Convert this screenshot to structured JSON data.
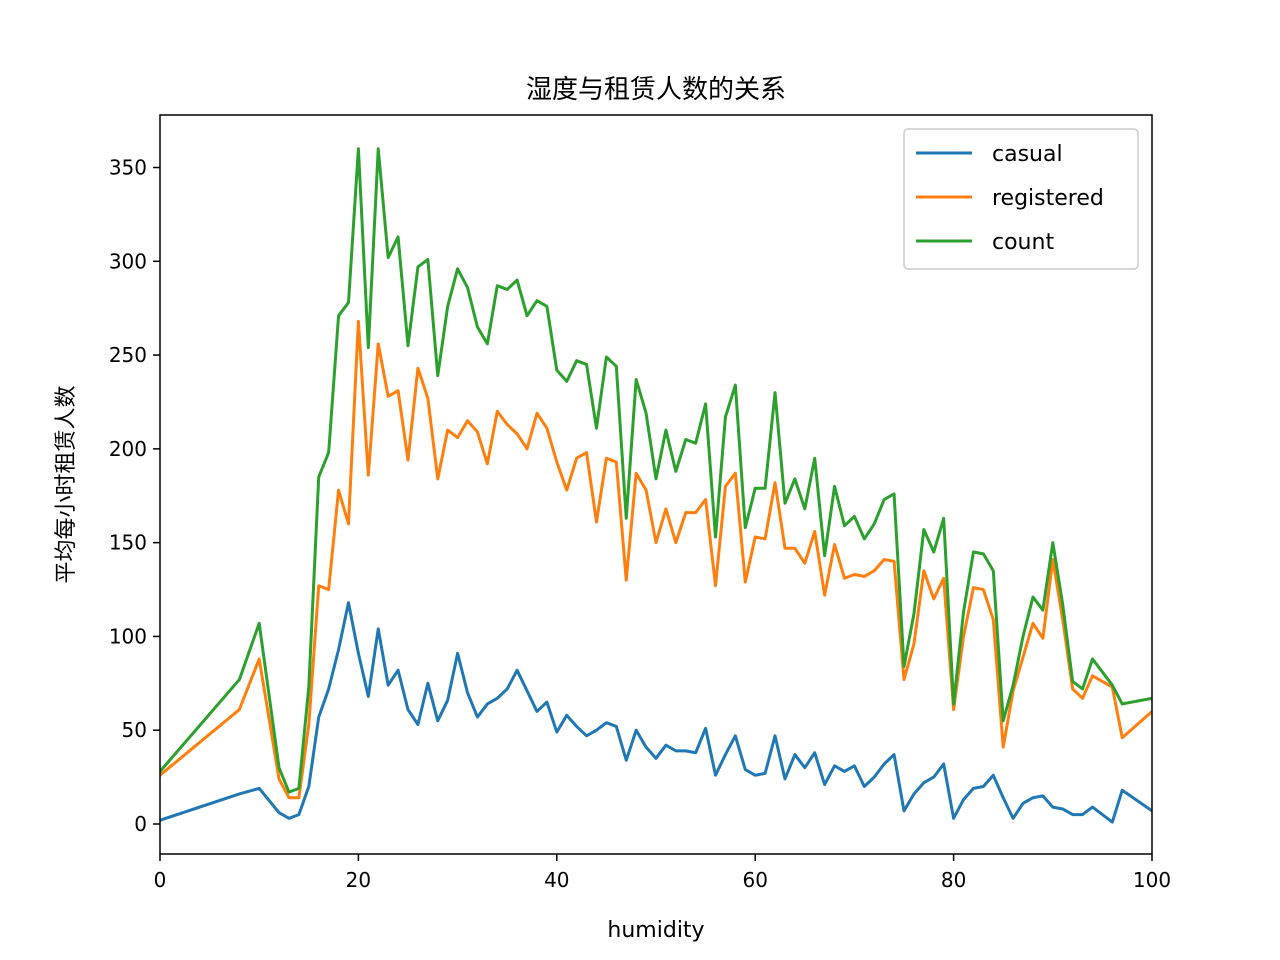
{
  "chart_data": {
    "type": "line",
    "title": "湿度与租赁人数的关系",
    "xlabel": "humidity",
    "ylabel": "平均每小时租赁人数",
    "xlim": [
      0,
      100
    ],
    "ylim": [
      -16,
      378
    ],
    "xticks": [
      0,
      20,
      40,
      60,
      80,
      100
    ],
    "yticks": [
      0,
      50,
      100,
      150,
      200,
      250,
      300,
      350
    ],
    "grid": false,
    "legend_position": "top-right",
    "x": [
      0,
      8,
      10,
      12,
      13,
      14,
      15,
      16,
      17,
      18,
      19,
      20,
      21,
      22,
      23,
      24,
      25,
      26,
      27,
      28,
      29,
      30,
      31,
      32,
      33,
      34,
      35,
      36,
      37,
      38,
      39,
      40,
      41,
      42,
      43,
      44,
      45,
      46,
      47,
      48,
      49,
      50,
      51,
      52,
      53,
      54,
      55,
      56,
      57,
      58,
      59,
      60,
      61,
      62,
      63,
      64,
      65,
      66,
      67,
      68,
      69,
      70,
      71,
      72,
      73,
      74,
      75,
      76,
      77,
      78,
      79,
      80,
      81,
      82,
      83,
      84,
      85,
      86,
      87,
      88,
      89,
      90,
      91,
      92,
      93,
      94,
      96,
      97,
      100
    ],
    "series": [
      {
        "name": "casual",
        "color": "#1f77b4",
        "values": [
          2,
          16,
          19,
          6,
          3,
          5,
          20,
          57,
          72,
          93,
          118,
          91,
          68,
          104,
          74,
          82,
          61,
          53,
          75,
          55,
          66,
          91,
          70,
          57,
          64,
          67,
          72,
          82,
          71,
          60,
          65,
          49,
          58,
          52,
          47,
          50,
          54,
          52,
          34,
          50,
          41,
          35,
          42,
          39,
          39,
          38,
          51,
          26,
          37,
          47,
          29,
          26,
          27,
          47,
          24,
          37,
          30,
          38,
          21,
          31,
          28,
          31,
          20,
          25,
          32,
          37,
          7,
          16,
          22,
          25,
          32,
          3,
          13,
          19,
          20,
          26,
          14,
          3,
          11,
          14,
          15,
          9,
          8,
          5,
          5,
          9,
          1,
          18,
          7
        ]
      },
      {
        "name": "registered",
        "color": "#ff7f0e",
        "values": [
          26,
          61,
          88,
          24,
          14,
          14,
          53,
          127,
          125,
          178,
          160,
          268,
          186,
          256,
          228,
          231,
          194,
          243,
          227,
          184,
          210,
          206,
          215,
          209,
          192,
          220,
          213,
          208,
          200,
          219,
          211,
          193,
          178,
          195,
          198,
          161,
          195,
          193,
          130,
          187,
          178,
          150,
          168,
          150,
          166,
          166,
          173,
          127,
          180,
          187,
          129,
          153,
          152,
          182,
          147,
          147,
          139,
          156,
          122,
          149,
          131,
          133,
          132,
          135,
          141,
          140,
          77,
          96,
          135,
          120,
          131,
          61,
          100,
          126,
          125,
          109,
          41,
          71,
          89,
          107,
          99,
          141,
          109,
          72,
          67,
          79,
          73,
          46,
          60
        ]
      },
      {
        "name": "count",
        "color": "#2ca02c",
        "values": [
          28,
          77,
          107,
          30,
          17,
          19,
          73,
          185,
          198,
          271,
          278,
          360,
          254,
          360,
          302,
          313,
          255,
          297,
          301,
          239,
          276,
          296,
          286,
          265,
          256,
          287,
          285,
          290,
          271,
          279,
          276,
          242,
          236,
          247,
          245,
          211,
          249,
          244,
          163,
          237,
          219,
          184,
          210,
          188,
          205,
          203,
          224,
          153,
          217,
          234,
          158,
          179,
          179,
          230,
          171,
          184,
          168,
          195,
          143,
          180,
          159,
          164,
          152,
          160,
          173,
          176,
          84,
          112,
          157,
          145,
          163,
          64,
          113,
          145,
          144,
          135,
          55,
          74,
          100,
          121,
          114,
          150,
          117,
          76,
          72,
          88,
          74,
          64,
          67
        ]
      }
    ]
  }
}
